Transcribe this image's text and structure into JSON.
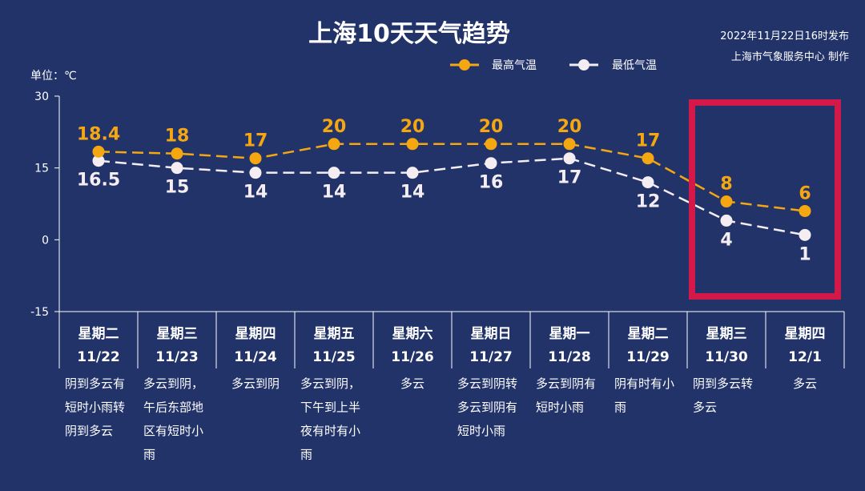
{
  "header": {
    "title": "上海10天天气趋势",
    "publish_line1": "2022年11月22日16时发布",
    "publish_line2": "上海市气象服务中心 制作",
    "unit_label": "单位：℃"
  },
  "colors": {
    "background": "#22336a",
    "high": "#f5a712",
    "low": "#f4eef2",
    "highlight_box": "#d3184a"
  },
  "chart_data": {
    "type": "line",
    "title": "上海10天天气趋势",
    "ylabel": "单位：℃",
    "ylim": [
      -15,
      30
    ],
    "yticks": [
      30,
      15,
      0,
      -15
    ],
    "x_weekdays": [
      "星期二",
      "星期三",
      "星期四",
      "星期五",
      "星期六",
      "星期日",
      "星期一",
      "星期二",
      "星期三",
      "星期四"
    ],
    "x_dates": [
      "11/22",
      "11/23",
      "11/24",
      "11/25",
      "11/26",
      "11/27",
      "11/28",
      "11/29",
      "11/30",
      "12/1"
    ],
    "series": [
      {
        "name": "最高气温",
        "values": [
          18.4,
          18,
          17,
          20,
          20,
          20,
          20,
          17,
          8,
          6
        ],
        "labels": [
          "18.4",
          "18",
          "17",
          "20",
          "20",
          "20",
          "20",
          "17",
          "8",
          "6"
        ]
      },
      {
        "name": "最低气温",
        "values": [
          16.5,
          15,
          14,
          14,
          14,
          16,
          17,
          12,
          4,
          1
        ],
        "labels": [
          "16.5",
          "15",
          "14",
          "14",
          "14",
          "16",
          "17",
          "12",
          "4",
          "1"
        ]
      }
    ],
    "legend": "top-right",
    "highlight": {
      "from": "11/30",
      "to": "12/1"
    },
    "weather": [
      [
        "阴到多云有",
        "短时小雨转",
        "阴到多云"
      ],
      [
        "多云到阴，",
        "午后东部地",
        "区有短时小",
        "雨"
      ],
      [
        "多云到阴"
      ],
      [
        "多云到阴，",
        "下午到上半",
        "夜有时有小",
        "雨"
      ],
      [
        "多云"
      ],
      [
        "多云到阴转",
        "多云到阴有",
        "短时小雨"
      ],
      [
        "多云到阴有",
        "短时小雨"
      ],
      [
        "阴有时有小",
        "雨"
      ],
      [
        "阴到多云转",
        "多云"
      ],
      [
        "多云"
      ]
    ]
  }
}
